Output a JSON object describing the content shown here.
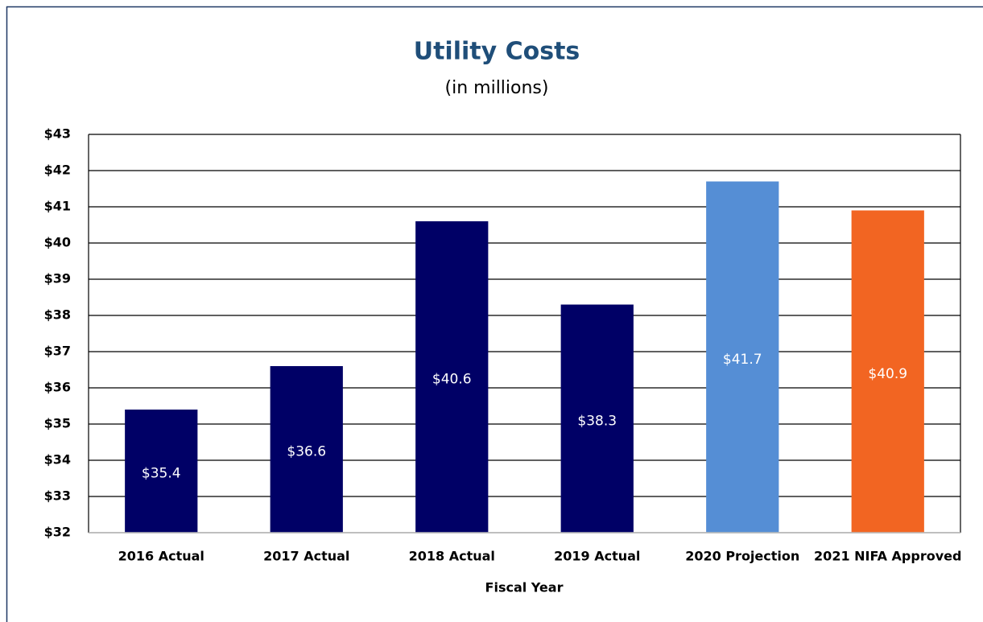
{
  "chart_data": {
    "type": "bar",
    "title": "Utility Costs",
    "subtitle": "(in millions)",
    "x_label": "Fiscal Year",
    "categories": [
      "2016 Actual",
      "2017 Actual",
      "2018 Actual",
      "2019 Actual",
      "2020 Projection",
      "2021 NIFA Approved"
    ],
    "values": [
      35.4,
      36.6,
      40.6,
      38.3,
      41.7,
      40.9
    ],
    "value_labels": [
      "$35.4",
      "$36.6",
      "$40.6",
      "$38.3",
      "$41.7",
      "$40.9"
    ],
    "colors": [
      "#000066",
      "#000066",
      "#000066",
      "#000066",
      "#558ed5",
      "#f26522"
    ],
    "ylim": [
      32,
      43
    ],
    "yticks": [
      {
        "value": 32,
        "label": "$32"
      },
      {
        "value": 33,
        "label": "$33"
      },
      {
        "value": 34,
        "label": "$34"
      },
      {
        "value": 35,
        "label": "$35"
      },
      {
        "value": 36,
        "label": "$36"
      },
      {
        "value": 37,
        "label": "$37"
      },
      {
        "value": 38,
        "label": "$38"
      },
      {
        "value": 39,
        "label": "$39"
      },
      {
        "value": 40,
        "label": "$40"
      },
      {
        "value": 41,
        "label": "$41"
      },
      {
        "value": 42,
        "label": "$42"
      },
      {
        "value": 43,
        "label": "$43"
      }
    ],
    "grid": true
  }
}
